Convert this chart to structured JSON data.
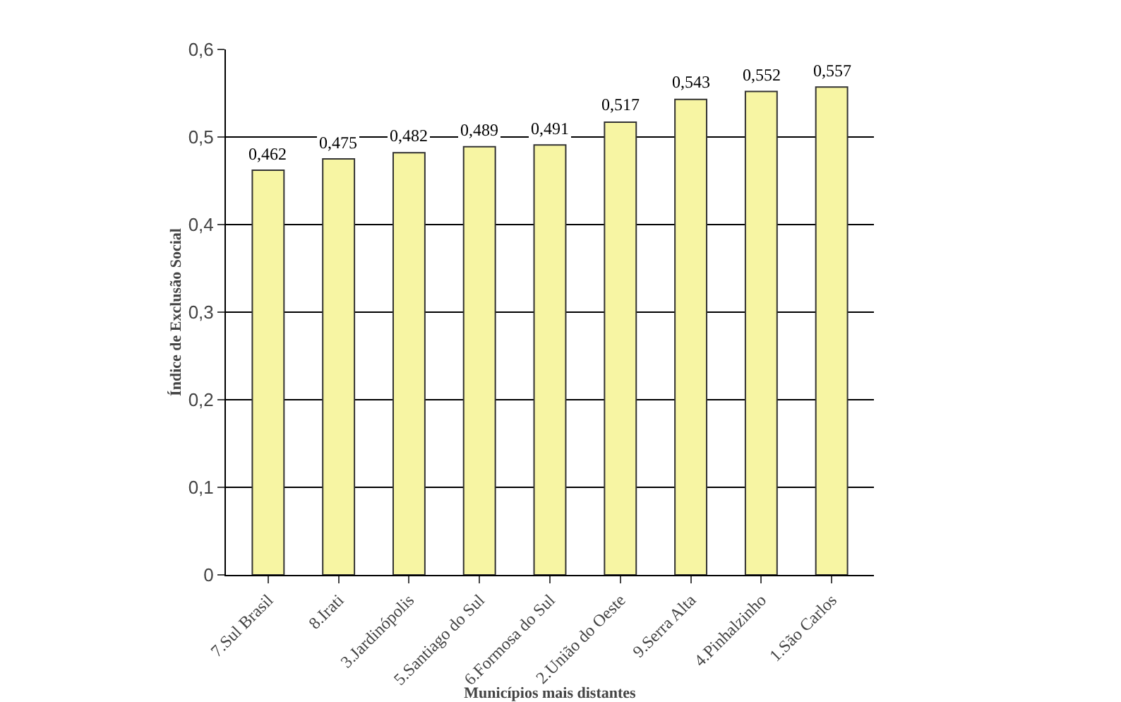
{
  "chart_data": {
    "type": "bar",
    "xlabel": "Municípios mais distantes",
    "ylabel": "Índice de Exclusão Social",
    "categories": [
      "7.Sul Brasil",
      "8.Irati",
      "3.Jardinópolis",
      "5.Santiago do Sul",
      "6.Formosa do Sul",
      "2.União do Oeste",
      "9.Serra Alta",
      "4.Pinhalzinho",
      "1.São Carlos"
    ],
    "values": [
      0.462,
      0.475,
      0.482,
      0.489,
      0.491,
      0.517,
      0.543,
      0.552,
      0.557
    ],
    "value_labels": [
      "0,462",
      "0,475",
      "0,482",
      "0,489",
      "0,491",
      "0,517",
      "0,543",
      "0,552",
      "0,557"
    ],
    "color": "#f7f5a3",
    "ylim": [
      0,
      0.6
    ],
    "yticks": [
      0,
      {
        "value": 0.1,
        "label": "0,1"
      },
      {
        "value": 0.2,
        "label": "0,2"
      },
      {
        "value": 0.3,
        "label": "0,3"
      },
      {
        "value": 0.4,
        "label": "0,4"
      },
      {
        "value": 0.5,
        "label": "0,5"
      },
      {
        "value": 0.6,
        "label": "0,6"
      }
    ],
    "grid": "y"
  }
}
